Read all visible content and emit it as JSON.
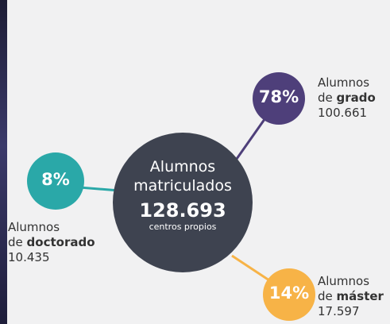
{
  "center": {
    "line1": "Alumnos",
    "line2": "matriculados",
    "total": "128.693",
    "note": "centros propios"
  },
  "nodes": [
    {
      "percent": "78%",
      "label": "Alumnos",
      "prefix": "de",
      "level": "grado",
      "count": "100.661"
    },
    {
      "percent": "8%",
      "label": "Alumnos",
      "prefix": "de",
      "level": "doctorado",
      "count": "10.435"
    },
    {
      "percent": "14%",
      "label": "Alumnos",
      "prefix": "de",
      "level": "máster",
      "count": "17.597"
    }
  ]
}
